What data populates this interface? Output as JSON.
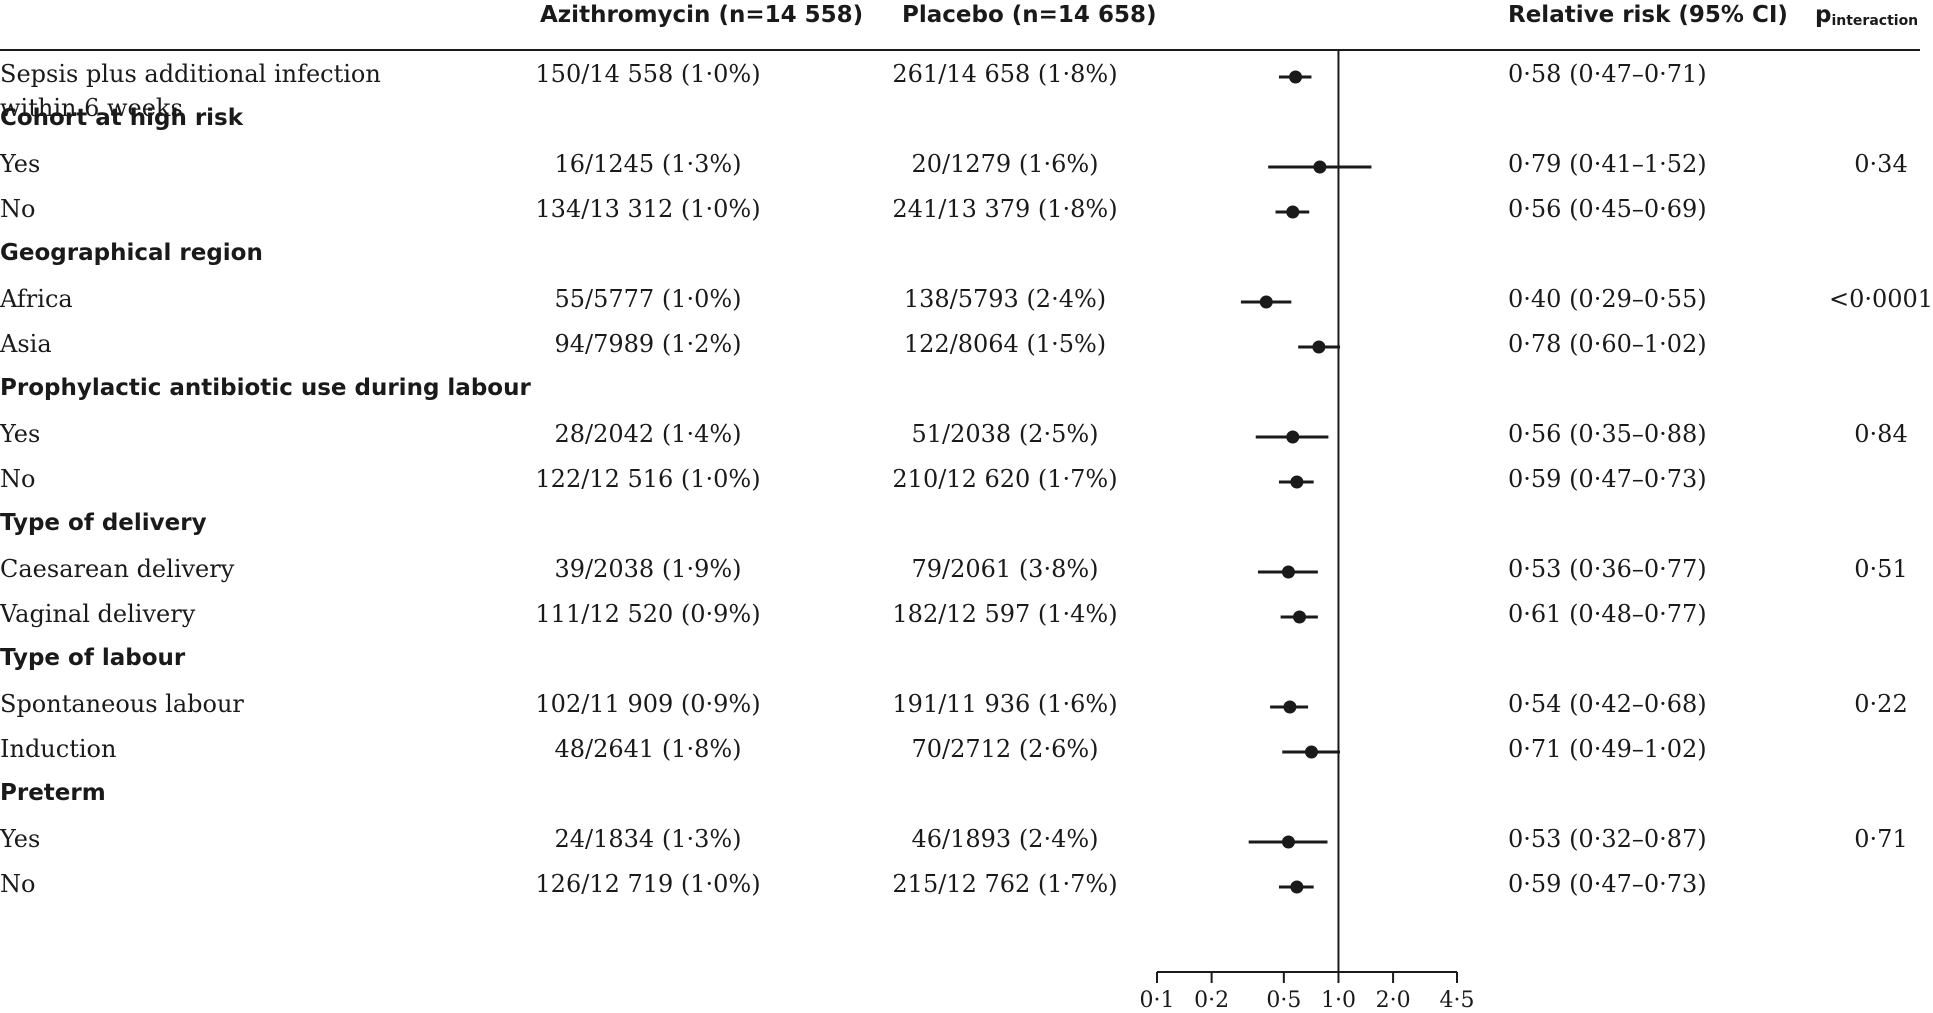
{
  "header": {
    "azithro": "Azithromycin (n=14 558)",
    "placebo": "Placebo (n=14 658)",
    "rr": "Relative risk (95% CI)",
    "p_main": "p",
    "p_sub": "interaction"
  },
  "chart_data": {
    "type": "forest",
    "x_scale": "log",
    "xlim": [
      0.1,
      4.5
    ],
    "ticks": [
      "0·1",
      "0·2",
      "0·5",
      "1·0",
      "2·0",
      "4·5"
    ],
    "tick_values": [
      0.1,
      0.2,
      0.5,
      1.0,
      2.0,
      4.5
    ],
    "reference_line": 1.0,
    "rows": [
      {
        "kind": "data",
        "label": "Sepsis plus additional infection",
        "label2": "within 6 weeks",
        "azithro": "150/14 558 (1·0%)",
        "placebo": "261/14 658 (1·8%)",
        "rr_text": "0·58 (0·47–0·71)",
        "p": "",
        "est": 0.58,
        "lo": 0.47,
        "hi": 0.71
      },
      {
        "kind": "head",
        "label": "Cohort at high risk"
      },
      {
        "kind": "data",
        "label": "Yes",
        "azithro": "16/1245 (1·3%)",
        "placebo": "20/1279 (1·6%)",
        "rr_text": "0·79 (0·41–1·52)",
        "p": "0·34",
        "est": 0.79,
        "lo": 0.41,
        "hi": 1.52
      },
      {
        "kind": "data",
        "label": "No",
        "azithro": "134/13 312 (1·0%)",
        "placebo": "241/13 379 (1·8%)",
        "rr_text": "0·56 (0·45–0·69)",
        "p": "",
        "est": 0.56,
        "lo": 0.45,
        "hi": 0.69
      },
      {
        "kind": "head",
        "label": "Geographical region"
      },
      {
        "kind": "data",
        "label": "Africa",
        "azithro": "55/5777 (1·0%)",
        "placebo": "138/5793 (2·4%)",
        "rr_text": "0·40 (0·29–0·55)",
        "p": "<0·0001",
        "est": 0.4,
        "lo": 0.29,
        "hi": 0.55
      },
      {
        "kind": "data",
        "label": "Asia",
        "azithro": "94/7989 (1·2%)",
        "placebo": "122/8064 (1·5%)",
        "rr_text": "0·78 (0·60–1·02)",
        "p": "",
        "est": 0.78,
        "lo": 0.6,
        "hi": 1.02
      },
      {
        "kind": "head",
        "label": "Prophylactic antibiotic use during labour"
      },
      {
        "kind": "data",
        "label": "Yes",
        "azithro": "28/2042 (1·4%)",
        "placebo": "51/2038 (2·5%)",
        "rr_text": "0·56 (0·35–0·88)",
        "p": "0·84",
        "est": 0.56,
        "lo": 0.35,
        "hi": 0.88
      },
      {
        "kind": "data",
        "label": "No",
        "azithro": "122/12 516 (1·0%)",
        "placebo": "210/12 620 (1·7%)",
        "rr_text": "0·59 (0·47–0·73)",
        "p": "",
        "est": 0.59,
        "lo": 0.47,
        "hi": 0.73
      },
      {
        "kind": "head",
        "label": "Type of delivery"
      },
      {
        "kind": "data",
        "label": "Caesarean delivery",
        "azithro": "39/2038 (1·9%)",
        "placebo": "79/2061 (3·8%)",
        "rr_text": "0·53 (0·36–0·77)",
        "p": "0·51",
        "est": 0.53,
        "lo": 0.36,
        "hi": 0.77
      },
      {
        "kind": "data",
        "label": "Vaginal delivery",
        "azithro": "111/12 520 (0·9%)",
        "placebo": "182/12 597 (1·4%)",
        "rr_text": "0·61 (0·48–0·77)",
        "p": "",
        "est": 0.61,
        "lo": 0.48,
        "hi": 0.77
      },
      {
        "kind": "head",
        "label": "Type of labour"
      },
      {
        "kind": "data",
        "label": "Spontaneous labour",
        "azithro": "102/11 909 (0·9%)",
        "placebo": "191/11 936 (1·6%)",
        "rr_text": "0·54 (0·42–0·68)",
        "p": "0·22",
        "est": 0.54,
        "lo": 0.42,
        "hi": 0.68
      },
      {
        "kind": "data",
        "label": "Induction",
        "azithro": "48/2641 (1·8%)",
        "placebo": "70/2712 (2·6%)",
        "rr_text": "0·71 (0·49–1·02)",
        "p": "",
        "est": 0.71,
        "lo": 0.49,
        "hi": 1.02
      },
      {
        "kind": "head",
        "label": "Preterm"
      },
      {
        "kind": "data",
        "label": "Yes",
        "azithro": "24/1834 (1·3%)",
        "placebo": "46/1893 (2·4%)",
        "rr_text": "0·53 (0·32–0·87)",
        "p": "0·71",
        "est": 0.53,
        "lo": 0.32,
        "hi": 0.87
      },
      {
        "kind": "data",
        "label": "No",
        "azithro": "126/12 719 (1·0%)",
        "placebo": "215/12 762 (1·7%)",
        "rr_text": "0·59 (0·47–0·73)",
        "p": "",
        "est": 0.59,
        "lo": 0.47,
        "hi": 0.73
      }
    ]
  }
}
